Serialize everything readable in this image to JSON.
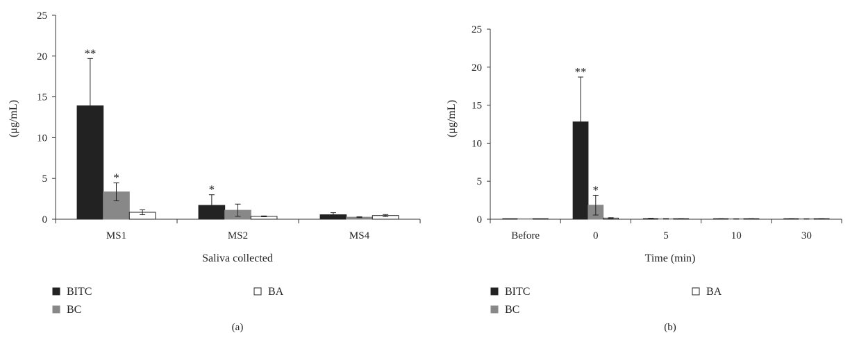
{
  "series_colors": {
    "BITC": "#222222",
    "BC": "#888888",
    "BA": "#ffffff"
  },
  "chart_data": [
    {
      "type": "bar",
      "panel_label": "(a)",
      "xlabel": "Saliva collected",
      "ylabel": "(μg/mL)",
      "ylim": [
        0,
        25
      ],
      "yticks": [
        0,
        5,
        10,
        15,
        20,
        25
      ],
      "grid": false,
      "legend_position": "bottom",
      "categories": [
        "MS1",
        "MS2",
        "MS4"
      ],
      "series": [
        {
          "name": "BITC",
          "values": [
            13.9,
            1.7,
            0.55
          ],
          "errors": [
            5.8,
            1.3,
            0.25
          ],
          "significance": [
            "**",
            "*",
            ""
          ]
        },
        {
          "name": "BC",
          "values": [
            3.35,
            1.1,
            0.25
          ],
          "errors": [
            1.1,
            0.75,
            0.05
          ],
          "significance": [
            "*",
            "",
            ""
          ]
        },
        {
          "name": "BA",
          "values": [
            0.85,
            0.35,
            0.45
          ],
          "errors": [
            0.3,
            0.05,
            0.12
          ],
          "significance": [
            "",
            "",
            ""
          ]
        }
      ]
    },
    {
      "type": "bar",
      "panel_label": "(b)",
      "xlabel": "Time (min)",
      "ylabel": "(μg/mL)",
      "ylim": [
        0,
        25
      ],
      "yticks": [
        0,
        5,
        10,
        15,
        20,
        25
      ],
      "grid": false,
      "legend_position": "bottom",
      "categories": [
        "Before",
        "0",
        "5",
        "10",
        "30"
      ],
      "series": [
        {
          "name": "BITC",
          "values": [
            0.02,
            12.8,
            0.08,
            0.05,
            0.05
          ],
          "errors": [
            0.0,
            5.9,
            0.05,
            0.03,
            0.03
          ],
          "significance": [
            "",
            "**",
            "",
            "",
            ""
          ]
        },
        {
          "name": "BC",
          "values": [
            0.02,
            1.85,
            0.05,
            0.03,
            0.03
          ],
          "errors": [
            0.0,
            1.3,
            0.03,
            0.02,
            0.02
          ],
          "significance": [
            "",
            "*",
            "",
            "",
            ""
          ]
        },
        {
          "name": "BA",
          "values": [
            0.02,
            0.15,
            0.05,
            0.05,
            0.05
          ],
          "errors": [
            0.0,
            0.05,
            0.03,
            0.03,
            0.03
          ],
          "significance": [
            "",
            "",
            "",
            "",
            ""
          ]
        }
      ]
    }
  ]
}
